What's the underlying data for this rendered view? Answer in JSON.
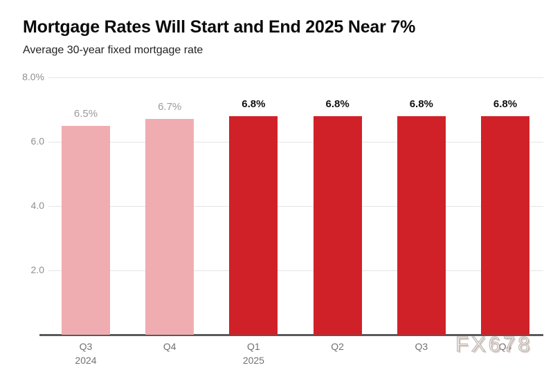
{
  "header": {
    "title": "Mortgage Rates Will Start and End 2025 Near 7%",
    "subtitle": "Average 30-year fixed mortgage rate"
  },
  "watermark": "FX678",
  "colors": {
    "past_bar": "#f0adb1",
    "forecast_bar": "#d02128",
    "past_value_label": "#9b9b9b",
    "forecast_value_label": "#111111"
  },
  "chart_data": {
    "type": "bar",
    "title": "Mortgage Rates Will Start and End 2025 Near 7%",
    "subtitle": "Average 30-year fixed mortgage rate",
    "xlabel": "",
    "ylabel": "Average 30-year fixed mortgage rate (%)",
    "ylim": [
      0,
      8
    ],
    "grid": "horizontal",
    "legend": "none",
    "categories": [
      "Q3 2024",
      "Q4 2024",
      "Q1 2025",
      "Q2 2025",
      "Q3 2025",
      "Q4 2025"
    ],
    "values": [
      6.5,
      6.7,
      6.8,
      6.8,
      6.8,
      6.8
    ],
    "y_ticks": [
      {
        "label": "8.0%",
        "value": 8
      },
      {
        "label": "6.0",
        "value": 6
      },
      {
        "label": "4.0",
        "value": 4
      },
      {
        "label": "2.0",
        "value": 2
      }
    ],
    "bars": [
      {
        "value": 6.5,
        "value_label": "6.5%",
        "x_label": "Q3",
        "x_sublabel": "2024",
        "kind": "past"
      },
      {
        "value": 6.7,
        "value_label": "6.7%",
        "x_label": "Q4",
        "x_sublabel": "",
        "kind": "past"
      },
      {
        "value": 6.8,
        "value_label": "6.8%",
        "x_label": "Q1",
        "x_sublabel": "2025",
        "kind": "forecast"
      },
      {
        "value": 6.8,
        "value_label": "6.8%",
        "x_label": "Q2",
        "x_sublabel": "",
        "kind": "forecast"
      },
      {
        "value": 6.8,
        "value_label": "6.8%",
        "x_label": "Q3",
        "x_sublabel": "",
        "kind": "forecast"
      },
      {
        "value": 6.8,
        "value_label": "6.8%",
        "x_label": "Q4",
        "x_sublabel": "",
        "kind": "forecast"
      }
    ]
  }
}
